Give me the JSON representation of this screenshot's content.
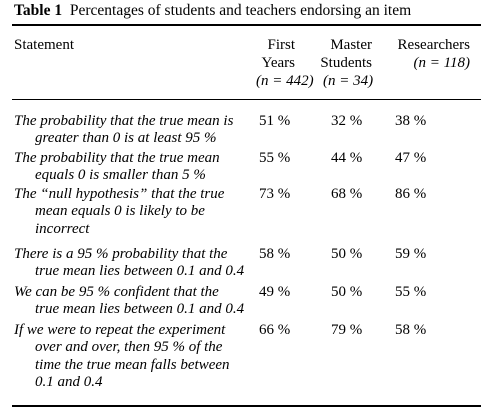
{
  "caption": {
    "label": "Table 1",
    "text": "Percentages of students and teachers endorsing an item"
  },
  "columns": {
    "statement": "Statement",
    "first_years": [
      "First",
      "Years",
      "(n = 442)"
    ],
    "master_students": [
      "Master",
      "Students",
      "(n = 34)"
    ],
    "researchers": [
      "Researchers",
      "(n = 118)"
    ]
  },
  "rows": [
    {
      "statement_lines": [
        "The probability that the true mean is",
        "greater than 0 is at least 95 %"
      ],
      "first_years": "51 %",
      "master_students": "32 %",
      "researchers": "38 %"
    },
    {
      "statement_lines": [
        "The probability that the true mean",
        "equals 0 is smaller than 5 %"
      ],
      "first_years": "55 %",
      "master_students": "44 %",
      "researchers": "47 %"
    },
    {
      "statement_lines": [
        "The “null hypothesis” that the true",
        "mean equals 0 is likely to be",
        "incorrect"
      ],
      "first_years": "73 %",
      "master_students": "68 %",
      "researchers": "86 %"
    },
    {
      "statement_lines": [
        "There is a 95 % probability that the",
        "true mean lies between 0.1 and 0.4"
      ],
      "first_years": "58 %",
      "master_students": "50 %",
      "researchers": "59 %"
    },
    {
      "statement_lines": [
        "We can be 95 % confident that the",
        "true mean lies between 0.1 and 0.4"
      ],
      "first_years": "49 %",
      "master_students": "50 %",
      "researchers": "55 %"
    },
    {
      "statement_lines": [
        "If we were to repeat the experiment",
        "over and over, then 95 % of the",
        "time the true mean falls between",
        "0.1 and 0.4"
      ],
      "first_years": "66 %",
      "master_students": "79 %",
      "researchers": "58 %"
    }
  ]
}
